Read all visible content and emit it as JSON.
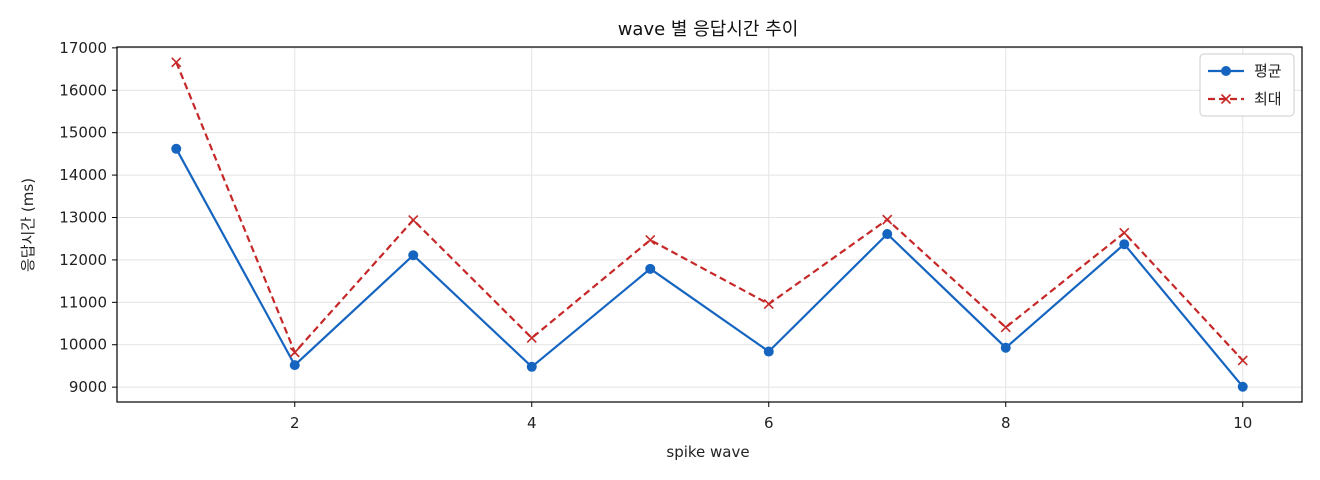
{
  "chart_data": {
    "type": "line",
    "title": "wave 별 응답시간 추이",
    "xlabel": "spike wave",
    "ylabel": "응답시간 (ms)",
    "x": [
      1,
      2,
      3,
      4,
      5,
      6,
      7,
      8,
      9,
      10
    ],
    "xlim": [
      0.5,
      10.5
    ],
    "ylim": [
      8650,
      17020
    ],
    "xticks": [
      2,
      4,
      6,
      8,
      10
    ],
    "yticks": [
      9000,
      10000,
      11000,
      12000,
      13000,
      14000,
      15000,
      16000,
      17000
    ],
    "grid": true,
    "legend_position": "top-right",
    "series": [
      {
        "name": "평균",
        "color": "#1565c0",
        "line_style": "solid",
        "marker": "circle",
        "values": [
          14620,
          9520,
          12110,
          9480,
          11790,
          9840,
          12610,
          9930,
          12370,
          9010
        ]
      },
      {
        "name": "최대",
        "color": "#c62828",
        "line_style": "dashed",
        "marker": "x",
        "values": [
          16660,
          9820,
          12940,
          10160,
          12470,
          10960,
          12950,
          10410,
          12640,
          9630
        ]
      }
    ]
  }
}
